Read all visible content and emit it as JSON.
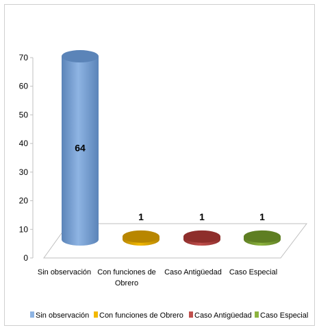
{
  "chart_data": {
    "type": "bar",
    "categories": [
      "Sin observación",
      "Con funciones de Obrero",
      "Caso Antigüedad",
      "Caso Especial"
    ],
    "category_lines": [
      [
        "Sin observación"
      ],
      [
        "Con funciones de",
        "Obrero"
      ],
      [
        "Caso Antigüedad"
      ],
      [
        "Caso Especial"
      ]
    ],
    "values": [
      64,
      1,
      1,
      1
    ],
    "data_labels": [
      "64",
      "1",
      "1",
      "1"
    ],
    "ylim": [
      0,
      70
    ],
    "yticks": [
      0,
      10,
      20,
      30,
      40,
      50,
      60,
      70
    ],
    "legend": [
      "Sin observación",
      "Con funciones de Obrero",
      "Caso Antigüedad",
      "Caso Especial"
    ],
    "legend_position": "bottom",
    "grid": false,
    "colors": [
      "#8EB4E3",
      "#F2B800",
      "#C0504D",
      "#8DB33F"
    ],
    "dark_colors": [
      "#5B84B8",
      "#B88600",
      "#8E2E2B",
      "#5E7E22"
    ]
  }
}
